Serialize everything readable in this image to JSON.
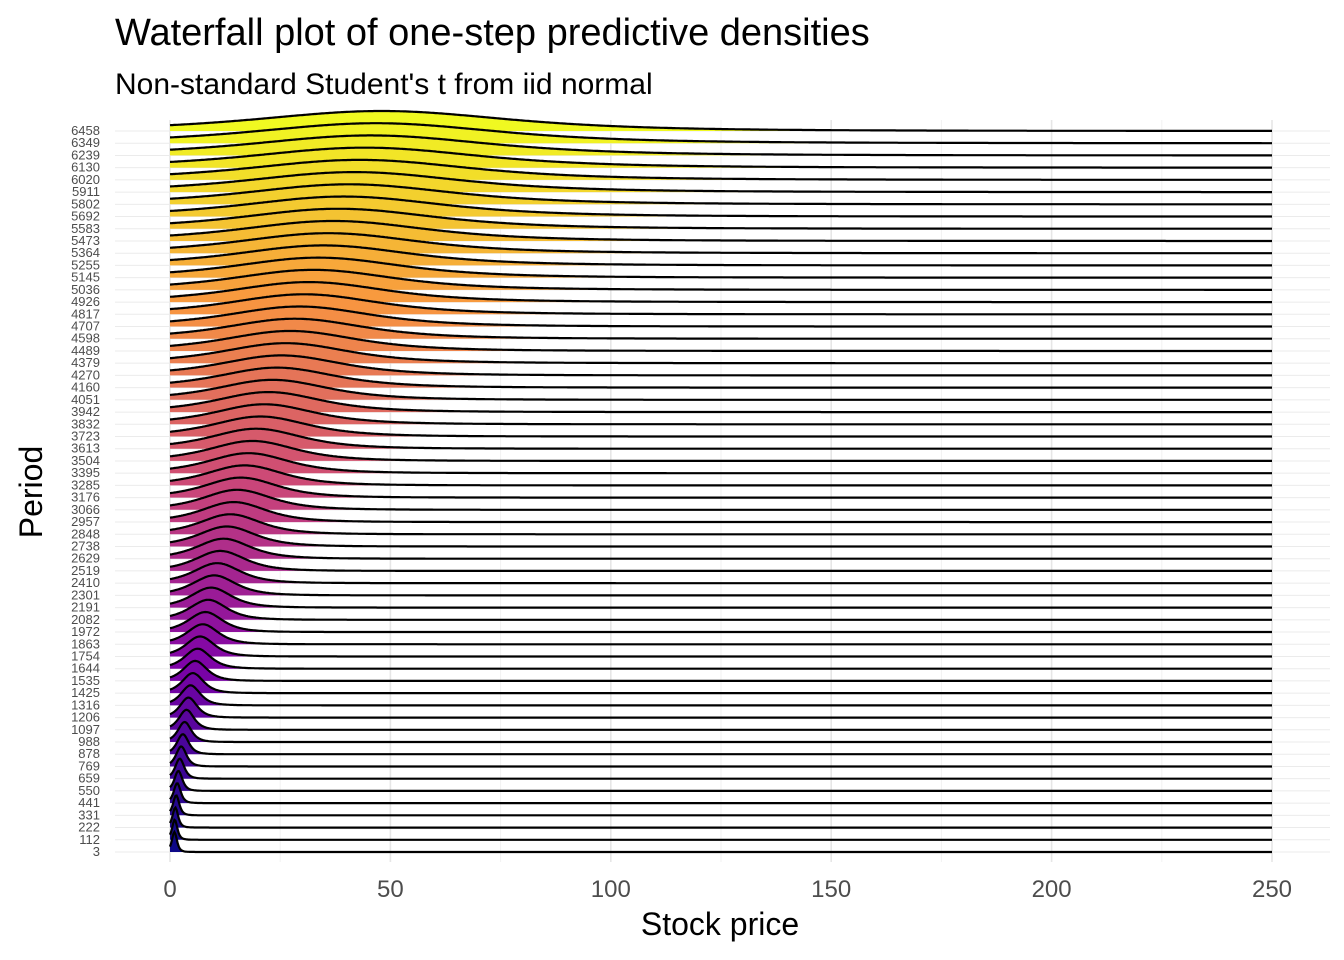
{
  "chart_data": {
    "type": "ridgeline",
    "title": "Waterfall plot of one-step predictive densities",
    "subtitle": "Non-standard Student's t from iid normal",
    "xlabel": "Stock price",
    "ylabel": "Period",
    "xlim": [
      0,
      250
    ],
    "x_ticks": [
      0,
      50,
      100,
      150,
      200,
      250
    ],
    "grid": true,
    "fill_palette": "plasma",
    "periods": [
      "3",
      "112",
      "222",
      "331",
      "441",
      "550",
      "659",
      "769",
      "878",
      "988",
      "1097",
      "1206",
      "1316",
      "1425",
      "1535",
      "1644",
      "1754",
      "1863",
      "1972",
      "2082",
      "2191",
      "2301",
      "2410",
      "2519",
      "2629",
      "2738",
      "2848",
      "2957",
      "3066",
      "3176",
      "3285",
      "3395",
      "3504",
      "3613",
      "3723",
      "3832",
      "3942",
      "4051",
      "4160",
      "4270",
      "4379",
      "4489",
      "4598",
      "4707",
      "4817",
      "4926",
      "5036",
      "5145",
      "5255",
      "5364",
      "5473",
      "5583",
      "5692",
      "5802",
      "5911",
      "6020",
      "6130",
      "6239",
      "6349",
      "6458"
    ],
    "density_location_first": 1,
    "density_location_last": 48,
    "density_scale_first": 0.6,
    "density_scale_last": 30,
    "colors": [
      "#0d0887",
      "#7e03a8",
      "#cc4778",
      "#f89540",
      "#f0f921"
    ]
  }
}
